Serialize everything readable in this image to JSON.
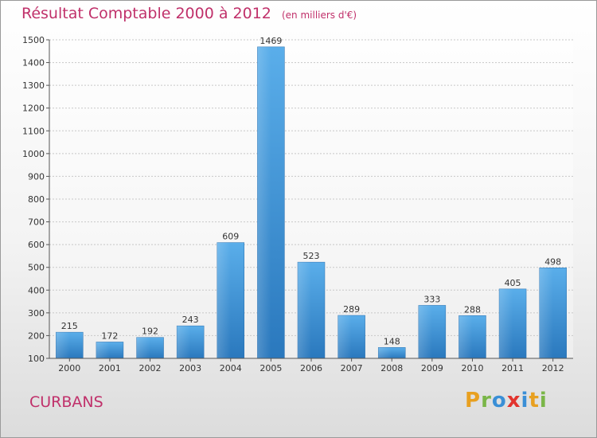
{
  "chart_data": {
    "type": "bar",
    "title": "Résultat Comptable 2000 à 2012",
    "subtitle": "(en milliers d'€)",
    "categories": [
      "2000",
      "2001",
      "2002",
      "2003",
      "2004",
      "2005",
      "2006",
      "2007",
      "2008",
      "2009",
      "2010",
      "2011",
      "2012"
    ],
    "values": [
      215,
      172,
      192,
      243,
      609,
      1469,
      523,
      289,
      148,
      333,
      288,
      405,
      498
    ],
    "ylim": [
      100,
      1500
    ],
    "yticks": [
      100,
      200,
      300,
      400,
      500,
      600,
      700,
      800,
      900,
      1000,
      1100,
      1200,
      1300,
      1400,
      1500
    ],
    "xlabel": "",
    "ylabel": "",
    "grid": true,
    "bar_color": "#3a8fd6"
  },
  "commune": "CURBANS",
  "logo": {
    "letters": [
      "P",
      "r",
      "o",
      "x",
      "i",
      "t",
      "i"
    ],
    "colors": [
      "#e8a020",
      "#7ab648",
      "#3a8fd6",
      "#e2342e",
      "#3a8fd6",
      "#e8a020",
      "#7ab648"
    ]
  }
}
